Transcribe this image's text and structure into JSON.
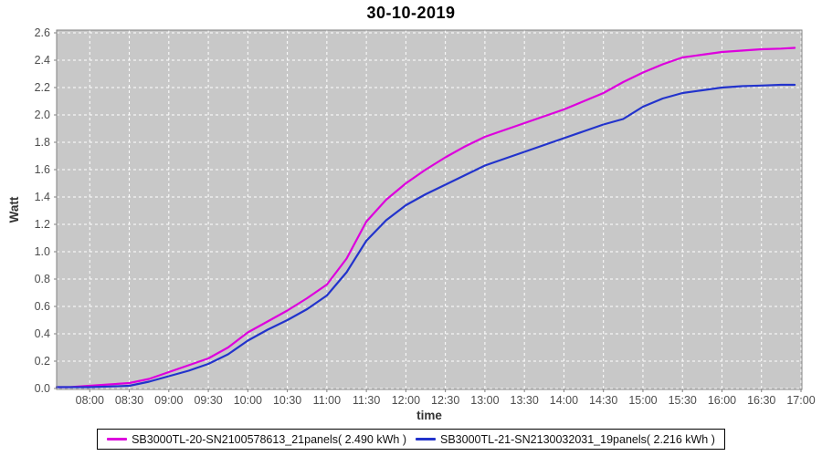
{
  "title": "30-10-2019",
  "axes": {
    "y_label": "Watt",
    "x_label": "time",
    "y_tick_labels": [
      "0.0",
      "0.2",
      "0.4",
      "0.6",
      "0.8",
      "1.0",
      "1.2",
      "1.4",
      "1.6",
      "1.8",
      "2.0",
      "2.2",
      "2.4",
      "2.6"
    ],
    "x_tick_labels": [
      "08:00",
      "08:30",
      "09:00",
      "09:30",
      "10:00",
      "10:30",
      "11:00",
      "11:30",
      "12:00",
      "12:30",
      "13:00",
      "13:30",
      "14:00",
      "14:30",
      "15:00",
      "15:30",
      "16:00",
      "16:30",
      "17:00"
    ]
  },
  "legend": {
    "items": [
      {
        "label": "SB3000TL-20-SN2100578613_21panels( 2.490 kWh )",
        "color": "#DD00DD"
      },
      {
        "label": "SB3000TL-21-SN2130032031_19panels( 2.216 kWh )",
        "color": "#2233CC"
      }
    ]
  },
  "colors": {
    "plot_background": "#C8C8C8",
    "grid": "#FFFFFF",
    "plot_border": "#808080",
    "tick_label": "#4D4D4D",
    "axis_label": "#333333",
    "series_magenta": "#DD00DD",
    "series_blue": "#2233CC"
  },
  "chart_data": {
    "type": "line",
    "title": "30-10-2019",
    "xlabel": "time",
    "ylabel": "Watt",
    "x_unit": "hour_of_day",
    "xlim": [
      7.58,
      17.02
    ],
    "ylim": [
      0,
      2.62
    ],
    "grid": true,
    "legend_position": "bottom",
    "x_ticks_hours": [
      8,
      8.5,
      9,
      9.5,
      10,
      10.5,
      11,
      11.5,
      12,
      12.5,
      13,
      13.5,
      14,
      14.5,
      15,
      15.5,
      16,
      16.5,
      17
    ],
    "x_tick_labels": [
      "08:00",
      "08:30",
      "09:00",
      "09:30",
      "10:00",
      "10:30",
      "11:00",
      "11:30",
      "12:00",
      "12:30",
      "13:00",
      "13:30",
      "14:00",
      "14:30",
      "15:00",
      "15:30",
      "16:00",
      "16:30",
      "17:00"
    ],
    "y_ticks": [
      0.0,
      0.2,
      0.4,
      0.6,
      0.8,
      1.0,
      1.2,
      1.4,
      1.6,
      1.8,
      2.0,
      2.2,
      2.4,
      2.6
    ],
    "x": [
      7.58,
      7.75,
      8.0,
      8.25,
      8.5,
      8.75,
      9.0,
      9.25,
      9.5,
      9.75,
      10.0,
      10.25,
      10.5,
      10.75,
      11.0,
      11.25,
      11.5,
      11.75,
      12.0,
      12.25,
      12.5,
      12.75,
      13.0,
      13.25,
      13.5,
      13.75,
      14.0,
      14.25,
      14.5,
      14.75,
      15.0,
      15.25,
      15.5,
      15.75,
      16.0,
      16.25,
      16.5,
      16.75,
      16.92
    ],
    "series": [
      {
        "name": "SB3000TL-20-SN2100578613_21panels( 2.490 kWh )",
        "color": "#DD00DD",
        "total_kwh": 2.49,
        "values": [
          0.01,
          0.01,
          0.02,
          0.03,
          0.04,
          0.07,
          0.12,
          0.17,
          0.22,
          0.3,
          0.41,
          0.49,
          0.57,
          0.66,
          0.76,
          0.95,
          1.22,
          1.38,
          1.5,
          1.6,
          1.69,
          1.77,
          1.84,
          1.89,
          1.94,
          1.99,
          2.04,
          2.1,
          2.16,
          2.24,
          2.31,
          2.37,
          2.42,
          2.44,
          2.46,
          2.47,
          2.48,
          2.485,
          2.49
        ]
      },
      {
        "name": "SB3000TL-21-SN2130032031_19panels( 2.216 kWh )",
        "color": "#2233CC",
        "total_kwh": 2.216,
        "values": [
          0.01,
          0.01,
          0.01,
          0.015,
          0.02,
          0.05,
          0.09,
          0.13,
          0.18,
          0.25,
          0.35,
          0.43,
          0.5,
          0.58,
          0.68,
          0.85,
          1.08,
          1.23,
          1.34,
          1.42,
          1.49,
          1.56,
          1.63,
          1.68,
          1.73,
          1.78,
          1.83,
          1.88,
          1.93,
          1.97,
          2.06,
          2.12,
          2.16,
          2.18,
          2.2,
          2.21,
          2.215,
          2.22,
          2.22
        ]
      }
    ]
  }
}
